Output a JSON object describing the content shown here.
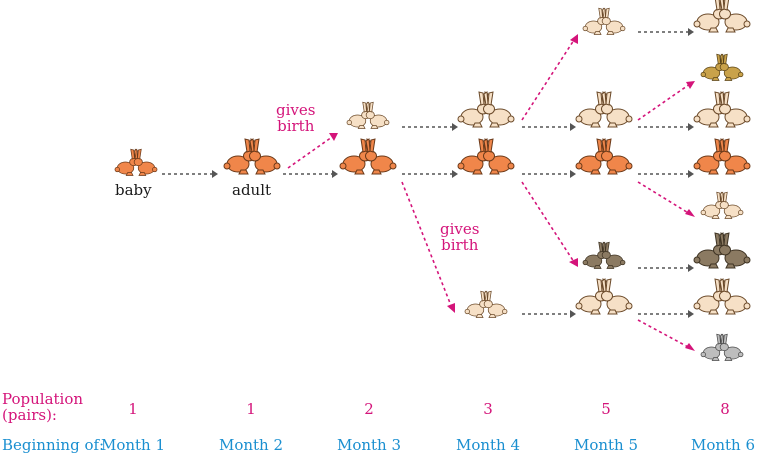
{
  "stage_labels": {
    "baby": "baby",
    "adult": "adult"
  },
  "birth_labels": [
    {
      "line1": "gives",
      "line2": "birth"
    },
    {
      "line1": "gives",
      "line2": "birth"
    }
  ],
  "population": {
    "label_line1": "Population",
    "label_line2": "(pairs):",
    "values": [
      "1",
      "1",
      "2",
      "3",
      "5",
      "8"
    ]
  },
  "months": {
    "label": "Beginning of:",
    "values": [
      "Month 1",
      "Month 2",
      "Month 3",
      "Month 4",
      "Month 5",
      "Month 6"
    ]
  },
  "rabbit_colors": {
    "adult": "#f0864a",
    "baby_cream": "#f6e0c6",
    "brown": "#8b7a62",
    "golden": "#c9a24a",
    "gray": "#bdbdbd"
  },
  "arrow_colors": {
    "growth": "#555555",
    "birth": "#d4147a"
  }
}
